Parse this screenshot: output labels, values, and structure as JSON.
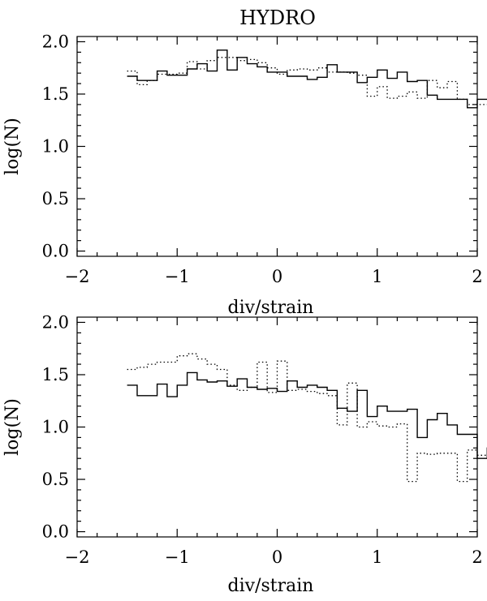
{
  "figure": {
    "title": "HYDRO"
  },
  "chart_data": [
    {
      "type": "line",
      "step": true,
      "title": "HYDRO",
      "xlabel": "div/strain",
      "ylabel": "log(N)",
      "xlim": [
        -2,
        2
      ],
      "ylim": [
        -0.05,
        2.05
      ],
      "xticks": [
        -2,
        -1,
        0,
        1,
        2
      ],
      "yticks": [
        0.0,
        0.5,
        1.0,
        1.5,
        2.0
      ],
      "xtick_labels": [
        "−2",
        "−1",
        "0",
        "1",
        "2"
      ],
      "ytick_labels": [
        "0.0",
        "0.5",
        "1.0",
        "1.5",
        "2.0"
      ],
      "bin_start": -1.5,
      "bin_width": 0.1,
      "series": [
        {
          "style": "solid",
          "values": [
            1.67,
            1.63,
            1.63,
            1.72,
            1.68,
            1.68,
            1.74,
            1.79,
            1.72,
            1.92,
            1.73,
            1.85,
            1.79,
            1.76,
            1.71,
            1.71,
            1.67,
            1.67,
            1.64,
            1.66,
            1.78,
            1.71,
            1.71,
            1.61,
            1.66,
            1.73,
            1.65,
            1.71,
            1.62,
            1.63,
            1.49,
            1.45,
            1.45,
            1.45,
            1.37,
            1.45,
            1.45,
            1.45,
            1.38
          ]
        },
        {
          "style": "dotted",
          "values": [
            1.72,
            1.59,
            1.63,
            1.69,
            1.69,
            1.7,
            1.81,
            1.74,
            1.82,
            1.85,
            1.85,
            1.82,
            1.83,
            1.8,
            1.75,
            1.69,
            1.73,
            1.74,
            1.73,
            1.75,
            1.71,
            1.71,
            1.7,
            1.68,
            1.48,
            1.57,
            1.46,
            1.48,
            1.52,
            1.46,
            1.63,
            1.56,
            1.62,
            1.45,
            1.4,
            1.4,
            1.4,
            1.35,
            1.35
          ]
        }
      ]
    },
    {
      "type": "line",
      "step": true,
      "title": "",
      "xlabel": "div/strain",
      "ylabel": "log(N)",
      "xlim": [
        -2,
        2
      ],
      "ylim": [
        -0.05,
        2.05
      ],
      "xticks": [
        -2,
        -1,
        0,
        1,
        2
      ],
      "yticks": [
        0.0,
        0.5,
        1.0,
        1.5,
        2.0
      ],
      "xtick_labels": [
        "−2",
        "−1",
        "0",
        "1",
        "2"
      ],
      "ytick_labels": [
        "0.0",
        "0.5",
        "1.0",
        "1.5",
        "2.0"
      ],
      "bin_start": -1.5,
      "bin_width": 0.1,
      "series": [
        {
          "style": "solid",
          "values": [
            1.4,
            1.3,
            1.3,
            1.41,
            1.29,
            1.4,
            1.52,
            1.45,
            1.43,
            1.44,
            1.39,
            1.46,
            1.38,
            1.36,
            1.37,
            1.34,
            1.44,
            1.38,
            1.4,
            1.38,
            1.35,
            1.18,
            1.15,
            1.35,
            1.1,
            1.2,
            1.15,
            1.15,
            1.17,
            0.9,
            1.07,
            1.13,
            1.02,
            0.93,
            0.93,
            0.7,
            0.8,
            0.7,
            0.85,
            0.8
          ]
        },
        {
          "style": "dotted",
          "values": [
            1.55,
            1.57,
            1.6,
            1.62,
            1.62,
            1.68,
            1.7,
            1.65,
            1.6,
            1.55,
            1.4,
            1.35,
            1.38,
            1.62,
            1.33,
            1.63,
            1.35,
            1.36,
            1.34,
            1.32,
            1.3,
            1.02,
            1.42,
            1.0,
            1.05,
            1.01,
            1.0,
            1.03,
            0.48,
            0.75,
            0.74,
            0.75,
            0.75,
            0.48,
            0.78,
            0.73,
            0.73,
            0.73,
            0.78
          ]
        }
      ]
    }
  ]
}
